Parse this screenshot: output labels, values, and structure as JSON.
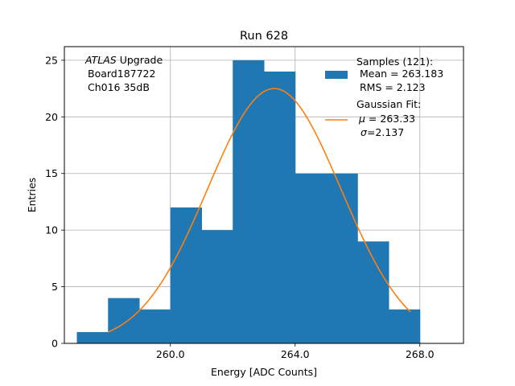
{
  "chart_data": {
    "type": "bar",
    "title": "Run 628",
    "xlabel": "Energy [ADC Counts]",
    "ylabel": "Entries",
    "xlim": [
      256.6,
      269.4
    ],
    "ylim": [
      0,
      26.2
    ],
    "grid": true,
    "x_ticks": [
      260.0,
      264.0,
      268.0
    ],
    "x_tick_labels": [
      "260.0",
      "264.0",
      "268.0"
    ],
    "y_ticks": [
      0,
      5,
      10,
      15,
      20,
      25
    ],
    "y_tick_labels": [
      "0",
      "5",
      "10",
      "15",
      "20",
      "25"
    ],
    "bins": [
      {
        "x0": 257,
        "x1": 258,
        "count": 1
      },
      {
        "x0": 258,
        "x1": 259,
        "count": 4
      },
      {
        "x0": 259,
        "x1": 260,
        "count": 3
      },
      {
        "x0": 260,
        "x1": 261,
        "count": 12
      },
      {
        "x0": 261,
        "x1": 262,
        "count": 10
      },
      {
        "x0": 262,
        "x1": 263,
        "count": 25
      },
      {
        "x0": 263,
        "x1": 264,
        "count": 24
      },
      {
        "x0": 264,
        "x1": 265,
        "count": 15
      },
      {
        "x0": 265,
        "x1": 266,
        "count": 15
      },
      {
        "x0": 266,
        "x1": 267,
        "count": 9
      },
      {
        "x0": 267,
        "x1": 268,
        "count": 3
      }
    ],
    "fit": {
      "mu": 263.33,
      "sigma": 2.137,
      "amplitude": 22.5,
      "x_range": [
        258.0,
        267.7
      ]
    },
    "colors": {
      "histogram": "#1f77b4",
      "fit": "#ff7f0e"
    },
    "legend": {
      "placement": "top-right",
      "samples_lines": [
        "Samples (121):",
        " Mean = 263.183",
        " RMS = 2.123"
      ],
      "fit_title": "Gaussian Fit:",
      "fit_mu_symbol": "μ",
      "fit_mu_value": " = 263.33",
      "fit_sigma_symbol": "σ",
      "fit_sigma_value": "=2.137"
    },
    "annotation": {
      "atlas": "ATLAS",
      "upgrade": " Upgrade",
      "board": "Board187722",
      "channel": "Ch016 35dB"
    }
  }
}
